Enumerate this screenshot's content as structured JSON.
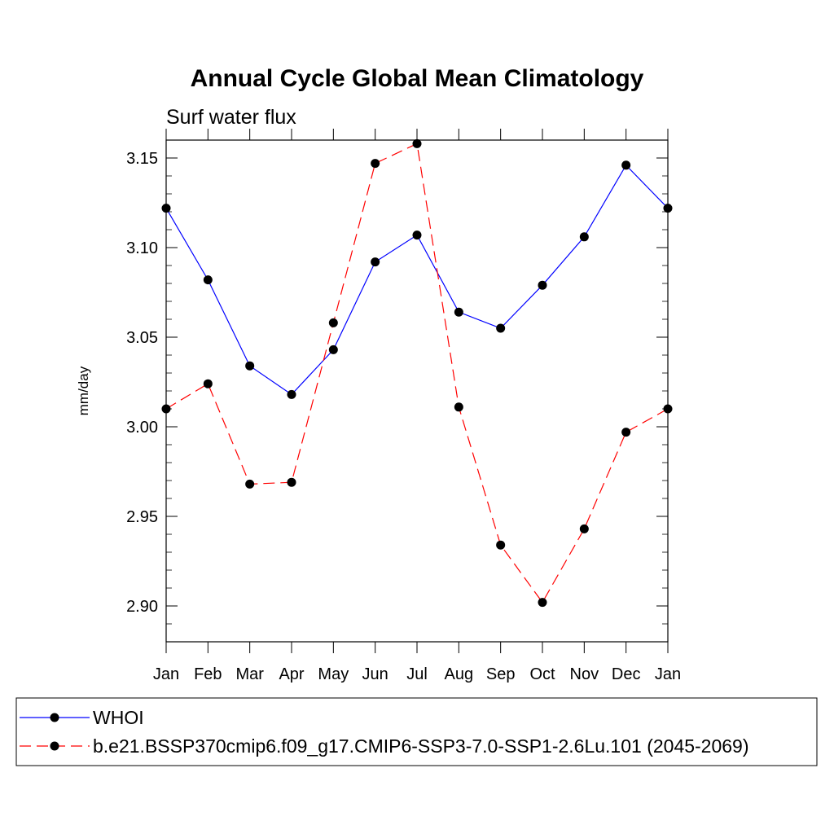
{
  "chart_data": {
    "type": "line",
    "title": "Annual Cycle Global Mean Climatology",
    "subtitle": "Surf water flux",
    "xlabel": "",
    "ylabel": "mm/day",
    "categories": [
      "Jan",
      "Feb",
      "Mar",
      "Apr",
      "May",
      "Jun",
      "Jul",
      "Aug",
      "Sep",
      "Oct",
      "Nov",
      "Dec",
      "Jan"
    ],
    "ylim": [
      2.88,
      3.16
    ],
    "yticks": [
      "3.15",
      "3.10",
      "3.05",
      "3.00",
      "2.95",
      "2.90"
    ],
    "grid": false,
    "legend_position": "bottom",
    "series": [
      {
        "name": "WHOI",
        "color": "#0000ff",
        "line_style": "solid",
        "marker": "filled-circle",
        "values": [
          3.122,
          3.082,
          3.034,
          3.018,
          3.043,
          3.092,
          3.107,
          3.064,
          3.055,
          3.079,
          3.106,
          3.146,
          3.122
        ]
      },
      {
        "name": "b.e21.BSSP370cmip6.f09_g17.CMIP6-SSP3-7.0-SSP1-2.6Lu.101 (2045-2069)",
        "color": "#ff0000",
        "line_style": "dashed",
        "marker": "filled-circle",
        "values": [
          3.01,
          3.024,
          2.968,
          2.969,
          3.058,
          3.147,
          3.158,
          3.011,
          2.934,
          2.902,
          2.943,
          2.997,
          3.01
        ]
      }
    ]
  }
}
